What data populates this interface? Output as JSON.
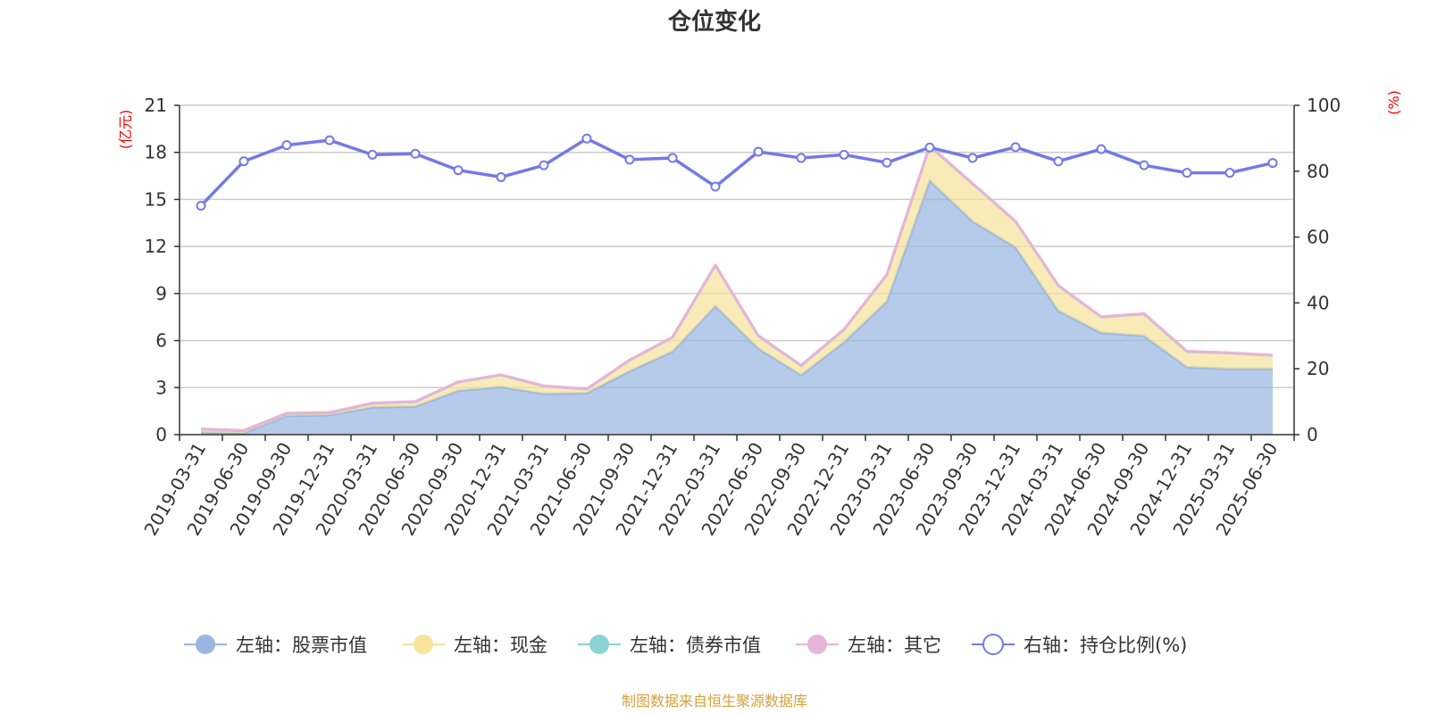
{
  "chart_data": {
    "type": "area",
    "title": "仓位变化",
    "y_left_label": "(亿元)",
    "y_right_label": "(%)",
    "ylim_left": [
      0,
      21
    ],
    "ylim_right": [
      0,
      100
    ],
    "y_left_ticks": [
      0,
      3,
      6,
      9,
      12,
      15,
      18,
      21
    ],
    "y_right_ticks": [
      0,
      20,
      40,
      60,
      80,
      100
    ],
    "categories": [
      "2019-03-31",
      "2019-06-30",
      "2019-09-30",
      "2019-12-31",
      "2020-03-31",
      "2020-06-30",
      "2020-09-30",
      "2020-12-31",
      "2021-03-31",
      "2021-06-30",
      "2021-09-30",
      "2021-12-31",
      "2022-03-31",
      "2022-06-30",
      "2022-09-30",
      "2022-12-31",
      "2023-03-31",
      "2023-06-30",
      "2023-09-30",
      "2023-12-31",
      "2024-03-31",
      "2024-06-30",
      "2024-09-30",
      "2024-12-31",
      "2025-03-31",
      "2025-06-30"
    ],
    "series": [
      {
        "name": "左轴：股票市值",
        "axis": "left",
        "color": "#9ab6e0",
        "values": [
          0.15,
          0.1,
          1.2,
          1.25,
          1.75,
          1.8,
          2.8,
          3.05,
          2.6,
          2.65,
          4.05,
          5.3,
          8.2,
          5.5,
          3.8,
          5.9,
          8.5,
          16.2,
          13.6,
          11.95,
          7.9,
          6.5,
          6.3,
          4.3,
          4.2,
          4.2
        ]
      },
      {
        "name": "左轴：现金",
        "axis": "left",
        "color": "#f6e39c",
        "values": [
          0.2,
          0.15,
          0.15,
          0.15,
          0.25,
          0.3,
          0.55,
          0.75,
          0.5,
          0.25,
          0.7,
          0.9,
          2.6,
          0.8,
          0.6,
          0.8,
          1.7,
          2.2,
          2.4,
          1.65,
          1.6,
          1.0,
          1.4,
          1.0,
          1.0,
          0.85
        ]
      },
      {
        "name": "左轴：债券市值",
        "axis": "left",
        "color": "#8dd3d3",
        "values": [
          0,
          0,
          0,
          0,
          0,
          0,
          0,
          0,
          0,
          0,
          0,
          0,
          0,
          0,
          0,
          0,
          0,
          0,
          0,
          0,
          0,
          0,
          0,
          0,
          0,
          0
        ]
      },
      {
        "name": "左轴：其它",
        "axis": "left",
        "color": "#e8b4d8",
        "values": [
          0.02,
          0.02,
          0.02,
          0.02,
          0.02,
          0.02,
          0.02,
          0.02,
          0.02,
          0.02,
          0.02,
          0.02,
          0.02,
          0.02,
          0.02,
          0.02,
          0.02,
          0.02,
          0.02,
          0.02,
          0.02,
          0.02,
          0.02,
          0.02,
          0.02,
          0.02
        ]
      },
      {
        "name": "右轴：持仓比例(%)",
        "axis": "right",
        "color": "#7479e8",
        "values": [
          69.5,
          83,
          87.9,
          89.4,
          85,
          85.3,
          80.3,
          78.2,
          81.8,
          89.9,
          83.5,
          84,
          75.3,
          85.9,
          84,
          85,
          82.6,
          87.2,
          84,
          87.3,
          83,
          86.7,
          81.8,
          79.5,
          79.5,
          82.5
        ]
      }
    ],
    "legend_position": "bottom",
    "grid": true
  },
  "source_note": "制图数据来自恒生聚源数据库",
  "colors": {
    "title": "#333333",
    "axis_unit": "#ff0000",
    "source": "#d4a13b",
    "grid": "#cccccc"
  }
}
